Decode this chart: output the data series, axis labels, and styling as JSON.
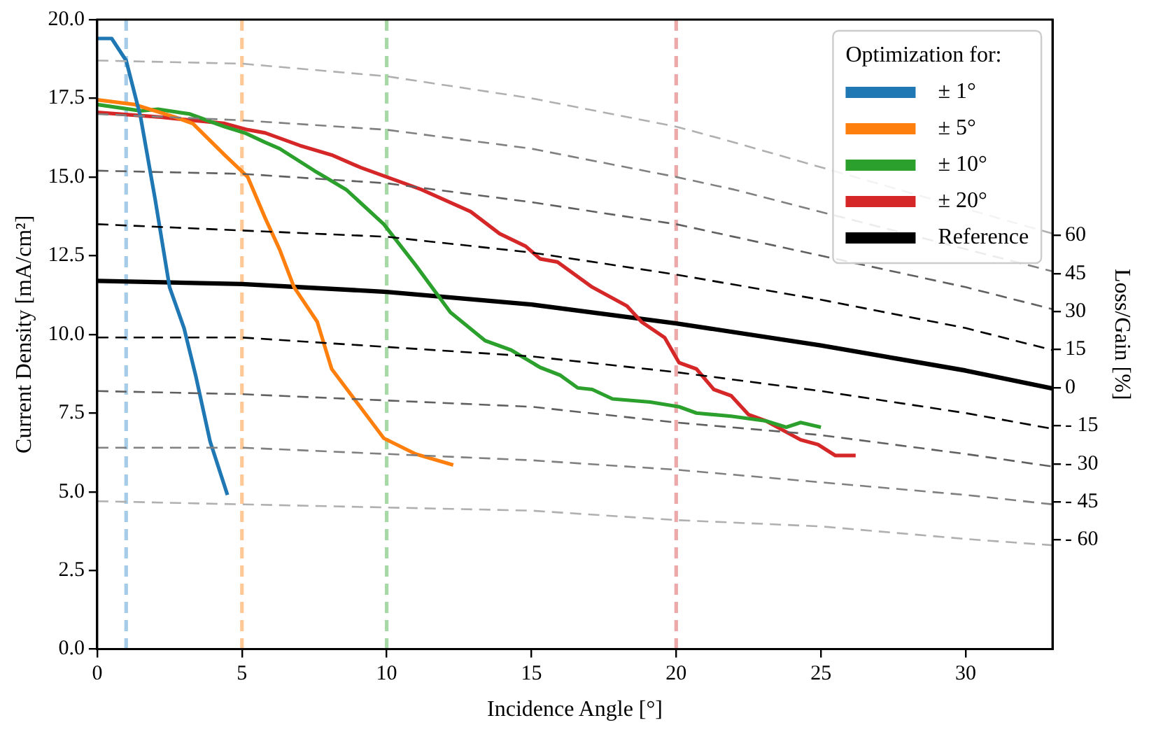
{
  "chart_data": {
    "type": "line",
    "xlabel": "Incidence Angle [°]",
    "ylabel": "Current Density [mA/cm²]",
    "y2label": "Loss/Gain [%]",
    "legend_title": "Optimization for:",
    "legend": "top right",
    "grid": false,
    "marker": "none",
    "xlim": [
      0,
      33
    ],
    "xticks": [
      0,
      5,
      10,
      15,
      20,
      25,
      30
    ],
    "ylim": [
      0,
      20
    ],
    "yticks": [
      {
        "value": 0,
        "label": "0.0"
      },
      {
        "value": 2.5,
        "label": "2.5"
      },
      {
        "value": 5,
        "label": "5.0"
      },
      {
        "value": 7.5,
        "label": "7.5"
      },
      {
        "value": 10,
        "label": "10.0"
      },
      {
        "value": 12.5,
        "label": "12.5"
      },
      {
        "value": 15,
        "label": "15.0"
      },
      {
        "value": 17.5,
        "label": "17.5"
      },
      {
        "value": 20,
        "label": "20.0"
      }
    ],
    "y2lim": [
      -103,
      145
    ],
    "y2ticks": [
      60,
      45,
      30,
      15,
      0,
      {
        "value": -15,
        "label": "- 15"
      },
      {
        "value": -30,
        "label": "- 30"
      },
      {
        "value": -45,
        "label": "- 45"
      },
      {
        "value": -60,
        "label": "- 60"
      }
    ],
    "ref_lines": [
      {
        "axis": "x",
        "value": 1,
        "color": "#a6cce8",
        "line_style": "dashed"
      },
      {
        "axis": "x",
        "value": 5,
        "color": "#ffc896",
        "line_style": "dashed"
      },
      {
        "axis": "x",
        "value": 10,
        "color": "#a6d9a6",
        "line_style": "dashed"
      },
      {
        "axis": "x",
        "value": 20,
        "color": "#eba9a9",
        "line_style": "dashed"
      }
    ],
    "series": [
      {
        "color": "#b0b0b0",
        "line_style": "dashed",
        "x": [
          0,
          5,
          10,
          15,
          20,
          22,
          33
        ],
        "values": [
          18.7,
          18.6,
          18.2,
          17.5,
          16.6,
          16.1,
          13.2
        ]
      },
      {
        "color": "#808080",
        "line_style": "dashed",
        "x": [
          0,
          5,
          10,
          15,
          20,
          22,
          33
        ],
        "values": [
          17.0,
          16.8,
          16.5,
          15.9,
          15.0,
          14.6,
          12.0
        ]
      },
      {
        "color": "#606060",
        "line_style": "dashed",
        "x": [
          0,
          5,
          10,
          15,
          20,
          22,
          30,
          33
        ],
        "values": [
          15.2,
          15.1,
          14.8,
          14.2,
          13.5,
          13.1,
          11.5,
          10.8
        ]
      },
      {
        "color": "#000000",
        "line_style": "dashed",
        "x": [
          0,
          5,
          10,
          15,
          20,
          25,
          30,
          33
        ],
        "values": [
          13.5,
          13.3,
          13.1,
          12.6,
          11.9,
          11.1,
          10.2,
          9.5
        ]
      },
      {
        "color": "#000000",
        "line_style": "dashed",
        "x": [
          0,
          5,
          10,
          15,
          20,
          25,
          30,
          33
        ],
        "values": [
          9.9,
          9.9,
          9.6,
          9.3,
          8.8,
          8.2,
          7.5,
          7.0
        ]
      },
      {
        "color": "#606060",
        "line_style": "dashed",
        "x": [
          0,
          5,
          10,
          15,
          20,
          25,
          30,
          33
        ],
        "values": [
          8.2,
          8.1,
          7.9,
          7.7,
          7.2,
          6.8,
          6.2,
          5.8
        ]
      },
      {
        "color": "#808080",
        "line_style": "dashed",
        "x": [
          0,
          5,
          10,
          15,
          20,
          25,
          30,
          33
        ],
        "values": [
          6.4,
          6.4,
          6.2,
          6.0,
          5.7,
          5.3,
          4.9,
          4.6
        ]
      },
      {
        "color": "#b0b0b0",
        "line_style": "dashed",
        "x": [
          0,
          5,
          10,
          15,
          20,
          25,
          30,
          33
        ],
        "values": [
          4.7,
          4.6,
          4.5,
          4.4,
          4.1,
          3.9,
          3.5,
          3.3
        ]
      },
      {
        "name": "± 1°",
        "color": "#1f77b4",
        "x": [
          0,
          0.5,
          1,
          1.5,
          2,
          2.5,
          3,
          3.4,
          3.9,
          4.5
        ],
        "values": [
          19.4,
          19.4,
          18.7,
          16.9,
          14.3,
          11.5,
          10.2,
          8.7,
          6.6,
          4.9
        ]
      },
      {
        "name": "± 5°",
        "color": "#ff7f0e",
        "x": [
          0,
          1.3,
          2.7,
          3.3,
          4.4,
          5.2,
          5.8,
          6.3,
          6.8,
          7.6,
          8.1,
          9.0,
          9.9,
          11.0,
          12.3
        ],
        "values": [
          17.45,
          17.3,
          16.9,
          16.7,
          15.7,
          15.0,
          13.7,
          12.7,
          11.5,
          10.4,
          8.9,
          7.8,
          6.7,
          6.2,
          5.85
        ]
      },
      {
        "name": "± 10°",
        "color": "#2ca02c",
        "x": [
          0,
          1.5,
          2.1,
          3.2,
          4.4,
          5.1,
          5.8,
          6.3,
          7.5,
          8.6,
          9.9,
          11.0,
          12.2,
          13.4,
          14.3,
          15.3,
          16.0,
          16.6,
          17.1,
          17.8,
          19.1,
          20.1,
          20.7,
          21.9,
          23.1,
          23.8,
          24.3,
          25.0
        ],
        "values": [
          17.3,
          17.1,
          17.15,
          17.0,
          16.6,
          16.4,
          16.1,
          15.9,
          15.2,
          14.6,
          13.5,
          12.2,
          10.7,
          9.8,
          9.5,
          8.95,
          8.7,
          8.3,
          8.25,
          7.95,
          7.85,
          7.7,
          7.5,
          7.4,
          7.25,
          7.05,
          7.2,
          7.05
        ]
      },
      {
        "name": "± 20°",
        "color": "#d62728",
        "x": [
          0,
          2.2,
          4.4,
          5.2,
          5.8,
          7.0,
          8.1,
          9.1,
          10.0,
          11.2,
          12.9,
          13.9,
          14.8,
          15.3,
          15.9,
          16.5,
          17.1,
          18.3,
          18.8,
          19.6,
          20.1,
          20.7,
          21.3,
          21.9,
          22.5,
          23.1,
          23.8,
          24.3,
          24.9,
          25.5,
          26.2
        ],
        "values": [
          17.05,
          16.9,
          16.7,
          16.5,
          16.4,
          16.0,
          15.7,
          15.3,
          15.0,
          14.6,
          13.9,
          13.2,
          12.8,
          12.4,
          12.3,
          11.9,
          11.5,
          10.9,
          10.4,
          9.9,
          9.1,
          8.9,
          8.25,
          8.05,
          7.45,
          7.25,
          6.9,
          6.65,
          6.5,
          6.15,
          6.15
        ]
      },
      {
        "name": "Reference",
        "color": "#000000",
        "x": [
          0,
          5,
          10,
          15,
          20,
          25,
          30,
          33
        ],
        "values": [
          11.7,
          11.6,
          11.35,
          10.95,
          10.35,
          9.65,
          8.85,
          8.28
        ]
      }
    ]
  }
}
